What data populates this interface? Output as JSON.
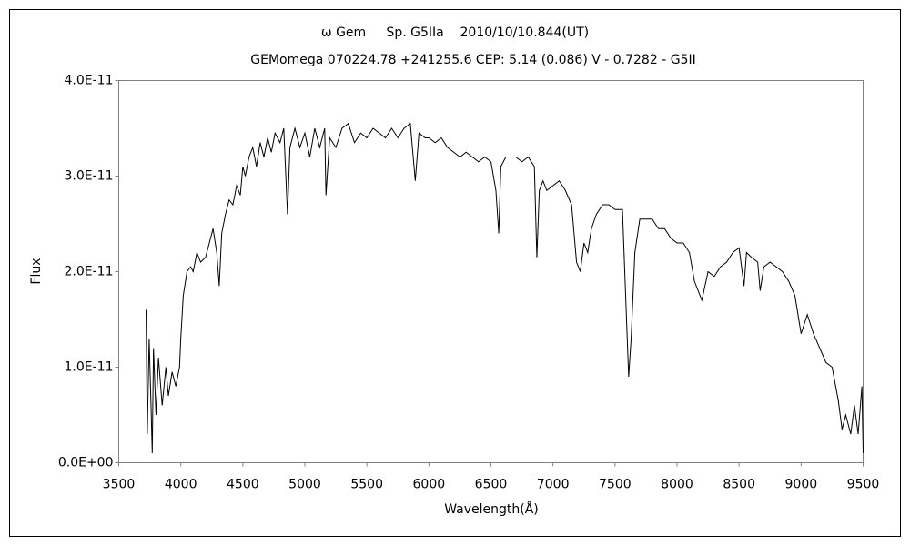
{
  "chart_data": {
    "type": "line",
    "title": "ω Gem     Sp. G5IIa    2010/10/10.844(UT)",
    "subtitle": "GEMomega 070224.78 +241255.6 CEP: 5.14 (0.086) V - 0.7282 - G5II",
    "x_label": "Wavelength(Å)",
    "y_label": "Flux",
    "color": "#000000",
    "xlim": [
      3500,
      9500
    ],
    "xticks": [
      3500,
      4000,
      4500,
      5000,
      5500,
      6000,
      6500,
      7000,
      7500,
      8000,
      8500,
      9000,
      9500
    ],
    "ylim": [
      0,
      4e-11
    ],
    "yticks": [
      {
        "value": 0,
        "label": "0.0E+00"
      },
      {
        "value": 1e-11,
        "label": "1.0E-11"
      },
      {
        "value": 2e-11,
        "label": "2.0E-11"
      },
      {
        "value": 3e-11,
        "label": "3.0E-11"
      },
      {
        "value": 4e-11,
        "label": "4.0E-11"
      }
    ],
    "x": [
      3720,
      3730,
      3745,
      3760,
      3770,
      3780,
      3800,
      3820,
      3850,
      3880,
      3900,
      3930,
      3960,
      3990,
      4000,
      4020,
      4050,
      4080,
      4100,
      4130,
      4160,
      4200,
      4230,
      4260,
      4290,
      4310,
      4330,
      4360,
      4390,
      4420,
      4450,
      4480,
      4500,
      4520,
      4550,
      4580,
      4610,
      4640,
      4670,
      4700,
      4730,
      4760,
      4800,
      4830,
      4860,
      4880,
      4920,
      4960,
      5000,
      5040,
      5080,
      5120,
      5160,
      5170,
      5200,
      5250,
      5300,
      5350,
      5400,
      5450,
      5500,
      5550,
      5600,
      5650,
      5700,
      5750,
      5800,
      5850,
      5890,
      5920,
      5970,
      6000,
      6050,
      6100,
      6150,
      6200,
      6250,
      6300,
      6350,
      6400,
      6450,
      6500,
      6540,
      6563,
      6580,
      6620,
      6700,
      6750,
      6800,
      6850,
      6870,
      6890,
      6920,
      6950,
      7000,
      7050,
      7100,
      7150,
      7190,
      7220,
      7250,
      7280,
      7310,
      7350,
      7400,
      7450,
      7500,
      7560,
      7590,
      7610,
      7630,
      7660,
      7700,
      7750,
      7800,
      7850,
      7900,
      7950,
      8000,
      8050,
      8100,
      8140,
      8200,
      8250,
      8300,
      8350,
      8400,
      8450,
      8500,
      8540,
      8560,
      8600,
      8650,
      8670,
      8700,
      8750,
      8800,
      8850,
      8900,
      8950,
      9000,
      9050,
      9100,
      9150,
      9200,
      9250,
      9300,
      9330,
      9360,
      9400,
      9430,
      9460,
      9490,
      9500
    ],
    "values": [
      1.6e-11,
      3e-12,
      1.3e-11,
      6e-12,
      1e-12,
      1.2e-11,
      5e-12,
      1.1e-11,
      6e-12,
      1e-11,
      7e-12,
      9.5e-12,
      8e-12,
      1e-11,
      1.3e-11,
      1.75e-11,
      2e-11,
      2.05e-11,
      2e-11,
      2.2e-11,
      2.1e-11,
      2.15e-11,
      2.3e-11,
      2.45e-11,
      2.2e-11,
      1.85e-11,
      2.4e-11,
      2.6e-11,
      2.75e-11,
      2.7e-11,
      2.9e-11,
      2.8e-11,
      3.1e-11,
      3e-11,
      3.2e-11,
      3.3e-11,
      3.1e-11,
      3.35e-11,
      3.2e-11,
      3.4e-11,
      3.25e-11,
      3.45e-11,
      3.35e-11,
      3.5e-11,
      2.6e-11,
      3.3e-11,
      3.5e-11,
      3.3e-11,
      3.45e-11,
      3.2e-11,
      3.5e-11,
      3.3e-11,
      3.5e-11,
      2.8e-11,
      3.4e-11,
      3.3e-11,
      3.5e-11,
      3.55e-11,
      3.35e-11,
      3.45e-11,
      3.4e-11,
      3.5e-11,
      3.45e-11,
      3.4e-11,
      3.5e-11,
      3.4e-11,
      3.5e-11,
      3.55e-11,
      2.95e-11,
      3.45e-11,
      3.4e-11,
      3.4e-11,
      3.35e-11,
      3.4e-11,
      3.3e-11,
      3.25e-11,
      3.2e-11,
      3.25e-11,
      3.2e-11,
      3.15e-11,
      3.2e-11,
      3.15e-11,
      2.85e-11,
      2.4e-11,
      3.1e-11,
      3.2e-11,
      3.2e-11,
      3.15e-11,
      3.2e-11,
      3.1e-11,
      2.15e-11,
      2.85e-11,
      2.95e-11,
      2.85e-11,
      2.9e-11,
      2.95e-11,
      2.85e-11,
      2.7e-11,
      2.1e-11,
      2e-11,
      2.3e-11,
      2.2e-11,
      2.45e-11,
      2.6e-11,
      2.7e-11,
      2.7e-11,
      2.65e-11,
      2.65e-11,
      1.6e-11,
      9e-12,
      1.3e-11,
      2.2e-11,
      2.55e-11,
      2.55e-11,
      2.55e-11,
      2.45e-11,
      2.45e-11,
      2.35e-11,
      2.3e-11,
      2.3e-11,
      2.2e-11,
      1.9e-11,
      1.7e-11,
      2e-11,
      1.95e-11,
      2.05e-11,
      2.1e-11,
      2.2e-11,
      2.25e-11,
      1.85e-11,
      2.2e-11,
      2.15e-11,
      2.1e-11,
      1.8e-11,
      2.05e-11,
      2.1e-11,
      2.05e-11,
      2e-11,
      1.9e-11,
      1.75e-11,
      1.35e-11,
      1.55e-11,
      1.35e-11,
      1.2e-11,
      1.05e-11,
      1e-11,
      6.5e-12,
      3.5e-12,
      5e-12,
      3e-12,
      6e-12,
      3e-12,
      8e-12,
      1e-12
    ]
  }
}
